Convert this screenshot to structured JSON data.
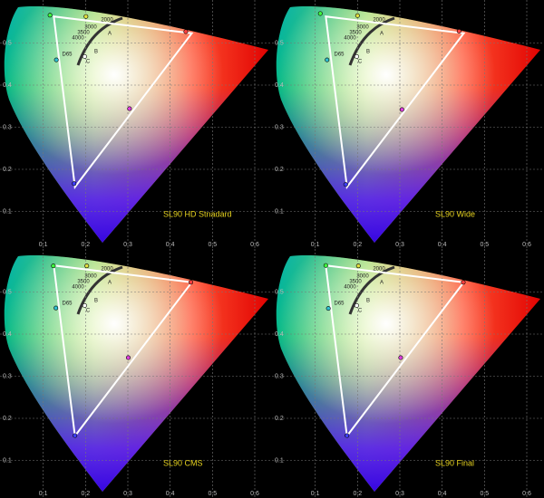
{
  "chart_data": [
    {
      "type": "chromaticity",
      "title": "SL90 HD Stnadard",
      "xlim": [
        0,
        0.63
      ],
      "ylim": [
        0,
        0.6
      ],
      "xticks": [
        0.1,
        0.2,
        0.3,
        0.4,
        0.5,
        0.6
      ],
      "yticks": [
        0.1,
        0.2,
        0.3,
        0.4,
        0.5
      ],
      "grid": true,
      "target": {
        "color": "#ffffff",
        "x": [
          0.451,
          0.125,
          0.175
        ],
        "y": [
          0.523,
          0.563,
          0.158
        ]
      },
      "measured": {
        "colors": [
          "#ff4040",
          "#40ff40",
          "#4040ff",
          "#30c0d0",
          "#e040e0",
          "#e0e040",
          "#ffffff"
        ],
        "x": [
          0.437,
          0.116,
          0.173,
          0.131,
          0.304,
          0.201,
          0.198
        ],
        "y": [
          0.527,
          0.566,
          0.166,
          0.46,
          0.344,
          0.563,
          0.468
        ]
      },
      "annotations": [
        "2000",
        "3000",
        "3500",
        "4000",
        "A",
        "B",
        "C",
        "D65"
      ]
    },
    {
      "type": "chromaticity",
      "title": "SL90 Wide",
      "xlim": [
        0,
        0.63
      ],
      "ylim": [
        0,
        0.6
      ],
      "xticks": [
        0.1,
        0.2,
        0.3,
        0.4,
        0.5,
        0.6
      ],
      "yticks": [
        0.1,
        0.2,
        0.3,
        0.4,
        0.5
      ],
      "grid": true,
      "target": {
        "color": "#ffffff",
        "x": [
          0.451,
          0.125,
          0.175
        ],
        "y": [
          0.523,
          0.563,
          0.158
        ]
      },
      "measured": {
        "colors": [
          "#ff4040",
          "#40ff40",
          "#4040ff",
          "#30c0d0",
          "#e040e0",
          "#e0e040",
          "#ffffff"
        ],
        "x": [
          0.44,
          0.112,
          0.172,
          0.128,
          0.305,
          0.2,
          0.198
        ],
        "y": [
          0.528,
          0.57,
          0.164,
          0.46,
          0.342,
          0.565,
          0.468
        ]
      },
      "annotations": [
        "2000",
        "3000",
        "3500",
        "4000",
        "A",
        "B",
        "C",
        "D65"
      ]
    },
    {
      "type": "chromaticity",
      "title": "SL90 CMS",
      "xlim": [
        0,
        0.63
      ],
      "ylim": [
        0,
        0.6
      ],
      "xticks": [
        0.1,
        0.2,
        0.3,
        0.4,
        0.5,
        0.6
      ],
      "yticks": [
        0.1,
        0.2,
        0.3,
        0.4,
        0.5
      ],
      "grid": true,
      "target": {
        "color": "#ffffff",
        "x": [
          0.451,
          0.125,
          0.175
        ],
        "y": [
          0.523,
          0.563,
          0.158
        ]
      },
      "measured": {
        "colors": [
          "#ff4040",
          "#40ff40",
          "#4040ff",
          "#30c0d0",
          "#e040e0",
          "#e0e040",
          "#ffffff"
        ],
        "x": [
          0.449,
          0.124,
          0.175,
          0.13,
          0.301,
          0.203,
          0.198
        ],
        "y": [
          0.523,
          0.562,
          0.159,
          0.462,
          0.344,
          0.562,
          0.468
        ]
      },
      "annotations": [
        "2000",
        "3000",
        "3500",
        "4000",
        "A",
        "B",
        "C",
        "D65"
      ]
    },
    {
      "type": "chromaticity",
      "title": "SL90 Final",
      "xlim": [
        0,
        0.63
      ],
      "ylim": [
        0,
        0.6
      ],
      "xticks": [
        0.1,
        0.2,
        0.3,
        0.4,
        0.5,
        0.6
      ],
      "yticks": [
        0.1,
        0.2,
        0.3,
        0.4,
        0.5
      ],
      "grid": true,
      "target": {
        "color": "#ffffff",
        "x": [
          0.451,
          0.125,
          0.175
        ],
        "y": [
          0.523,
          0.563,
          0.158
        ]
      },
      "measured": {
        "colors": [
          "#ff4040",
          "#40ff40",
          "#4040ff",
          "#30c0d0",
          "#e040e0",
          "#e0e040",
          "#ffffff"
        ],
        "x": [
          0.45,
          0.125,
          0.175,
          0.131,
          0.302,
          0.202,
          0.198
        ],
        "y": [
          0.523,
          0.563,
          0.159,
          0.461,
          0.344,
          0.562,
          0.468
        ]
      },
      "annotations": [
        "2000",
        "3000",
        "3500",
        "4000",
        "A",
        "B",
        "C",
        "D65"
      ]
    }
  ]
}
